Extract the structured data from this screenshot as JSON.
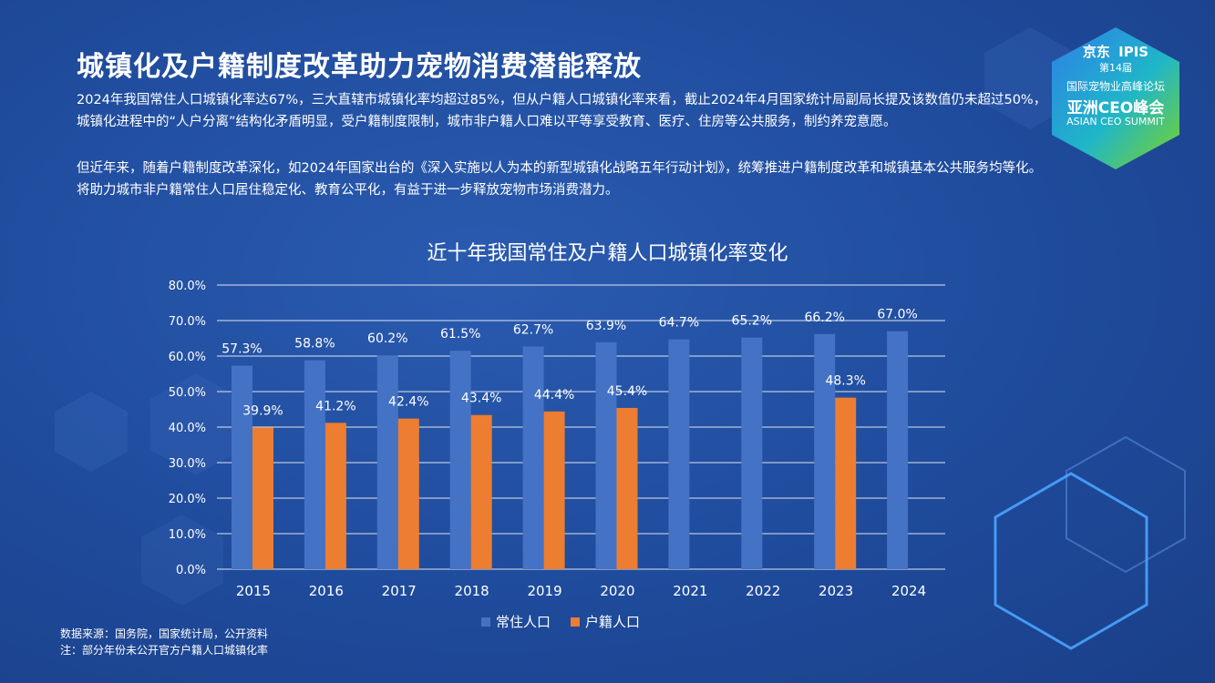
{
  "header": {
    "title": "城镇化及户籍制度改革助力宠物消费潜能释放"
  },
  "body_text": {
    "paragraph_1": "2024年我国常住人口城镇化率达67%，三大直辖市城镇化率均超过85%，但从户籍人口城镇化率来看，截止2024年4月国家统计局副局长提及该数值仍未超过50%，城镇化进程中的“人户分离”结构化矛盾明显，受户籍制度限制，城市非户籍人口难以平等享受教育、医疗、住房等公共服务，制约养宠意愿。",
    "paragraph_2": "但近年来，随着户籍制度改革深化，如2024年国家出台的《深入实施以人为本的新型城镇化战略五年行动计划》，统筹推进户籍制度改革和城镇基本公共服务均等化。将助力城市非户籍常住人口居住稳定化、教育公平化，有益于进一步释放宠物市场消费潜力。"
  },
  "logo": {
    "brand": "京东",
    "session": "第14届",
    "tag": "IPIS",
    "forum": "国际宠物业高峰论坛",
    "name_cn": "亚洲CEO峰会",
    "name_en": "ASIAN CEO SUMMIT"
  },
  "chart_data": {
    "type": "bar",
    "title": "近十年我国常住及户籍人口城镇化率变化",
    "categories": [
      "2015",
      "2016",
      "2017",
      "2018",
      "2019",
      "2020",
      "2021",
      "2022",
      "2023",
      "2024"
    ],
    "series": [
      {
        "name": "常住人口",
        "color": "#4472c4",
        "values": [
          57.3,
          58.8,
          60.2,
          61.5,
          62.7,
          63.9,
          64.7,
          65.2,
          66.2,
          67.0
        ],
        "labels": [
          "57.3%",
          "58.8%",
          "60.2%",
          "61.5%",
          "62.7%",
          "63.9%",
          "64.7%",
          "65.2%",
          "66.2%",
          "67.0%"
        ]
      },
      {
        "name": "户籍人口",
        "color": "#ed7d31",
        "values": [
          39.9,
          41.2,
          42.4,
          43.4,
          44.4,
          45.4,
          null,
          null,
          48.3,
          null
        ],
        "labels": [
          "39.9%",
          "41.2%",
          "42.4%",
          "43.4%",
          "44.4%",
          "45.4%",
          null,
          null,
          "48.3%",
          null
        ]
      }
    ],
    "ylim": [
      0,
      80
    ],
    "yticks": [
      "0.0%",
      "10.0%",
      "20.0%",
      "30.0%",
      "40.0%",
      "50.0%",
      "60.0%",
      "70.0%",
      "80.0%"
    ],
    "grid": true,
    "legend": "bottom"
  },
  "footnotes": {
    "source": "数据来源：国务院，国家统计局，公开资料",
    "note": "注：部分年份未公开官方户籍人口城镇化率"
  }
}
